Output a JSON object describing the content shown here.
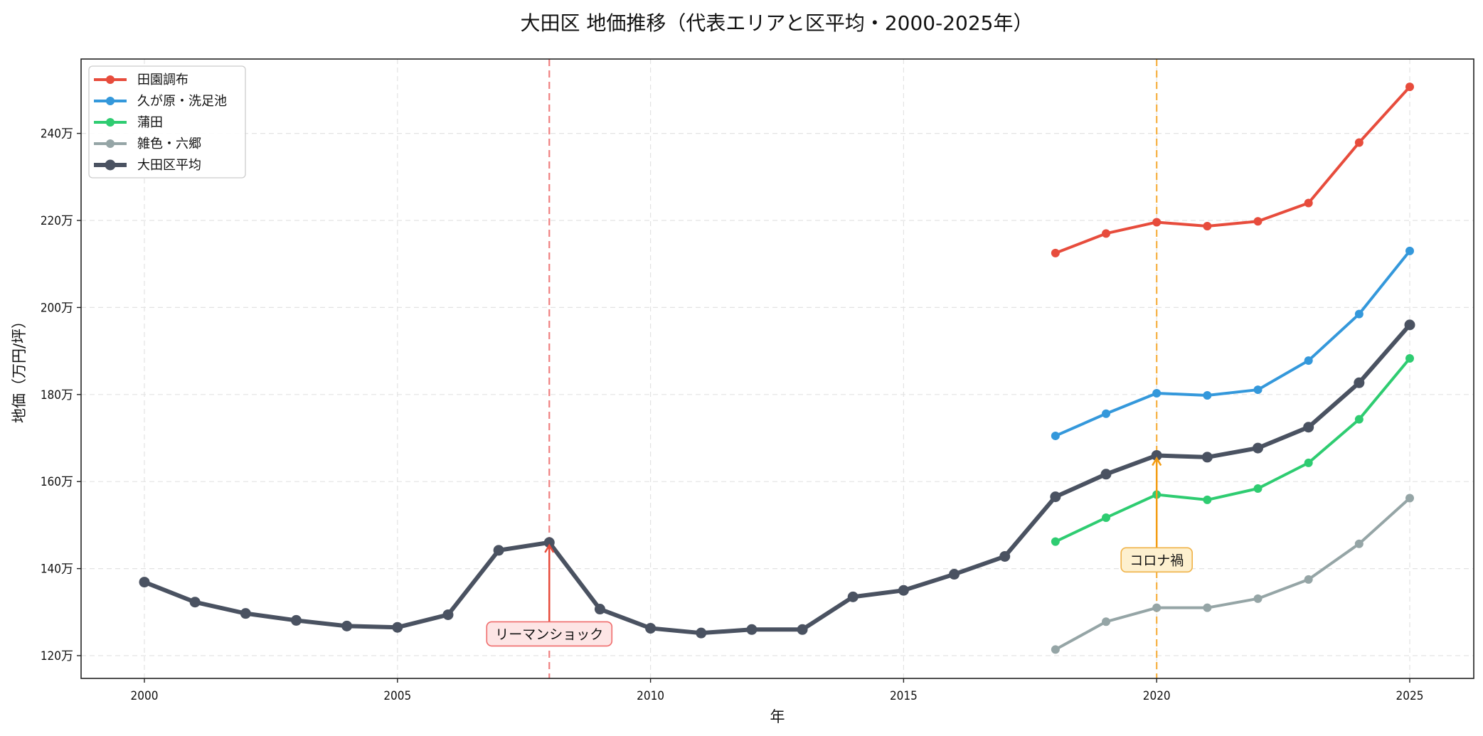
{
  "chart_data": {
    "type": "line",
    "title": "大田区 地価推移（代表エリアと区平均・2000-2025年）",
    "xlabel": "年",
    "ylabel": "地価（万円/坪）",
    "xlim": [
      1998.75,
      2026.25
    ],
    "ylim": [
      115,
      257
    ],
    "x_ticks": [
      2000,
      2005,
      2010,
      2015,
      2020,
      2025
    ],
    "y_ticks": [
      {
        "value": 120,
        "label": "120万"
      },
      {
        "value": 140,
        "label": "140万"
      },
      {
        "value": 160,
        "label": "160万"
      },
      {
        "value": 180,
        "label": "180万"
      },
      {
        "value": 200,
        "label": "200万"
      },
      {
        "value": 220,
        "label": "220万"
      },
      {
        "value": 240,
        "label": "240万"
      }
    ],
    "grid": true,
    "legend_position": "upper left",
    "series": [
      {
        "name": "田園調布",
        "color": "#e74c3c",
        "x": [
          2018,
          2019,
          2020,
          2021,
          2022,
          2023,
          2024,
          2025
        ],
        "values": [
          212.5,
          217.0,
          219.6,
          218.7,
          219.8,
          224.0,
          237.9,
          250.7
        ]
      },
      {
        "name": "久が原・洗足池",
        "color": "#3498db",
        "x": [
          2018,
          2019,
          2020,
          2021,
          2022,
          2023,
          2024,
          2025
        ],
        "values": [
          170.5,
          175.6,
          180.3,
          179.8,
          181.1,
          187.8,
          198.5,
          213.0
        ]
      },
      {
        "name": "蒲田",
        "color": "#2ecc71",
        "x": [
          2018,
          2019,
          2020,
          2021,
          2022,
          2023,
          2024,
          2025
        ],
        "values": [
          146.2,
          151.7,
          157.0,
          155.8,
          158.4,
          164.3,
          174.3,
          188.3
        ]
      },
      {
        "name": "雑色・六郷",
        "color": "#95a5a6",
        "x": [
          2018,
          2019,
          2020,
          2021,
          2022,
          2023,
          2024,
          2025
        ],
        "values": [
          121.4,
          127.8,
          131.0,
          131.0,
          133.1,
          137.5,
          145.7,
          156.2
        ]
      },
      {
        "name": "大田区平均",
        "color": "#4a5261",
        "x": [
          2000,
          2001,
          2002,
          2003,
          2004,
          2005,
          2006,
          2007,
          2008,
          2009,
          2010,
          2011,
          2012,
          2013,
          2014,
          2015,
          2016,
          2017,
          2018,
          2019,
          2020,
          2021,
          2022,
          2023,
          2024,
          2025
        ],
        "values": [
          136.9,
          132.3,
          129.7,
          128.1,
          126.8,
          126.5,
          129.4,
          144.2,
          146.0,
          130.7,
          126.3,
          125.2,
          126.0,
          126.0,
          133.5,
          135.0,
          138.7,
          142.8,
          156.5,
          161.7,
          166.0,
          165.6,
          167.7,
          172.5,
          182.7,
          196.0
        ]
      }
    ],
    "annotations": [
      {
        "text": "リーマンショック",
        "x": 2008,
        "color": "#e74c3c",
        "box_fill": "#fde5e5",
        "arrow_to": 146.0,
        "text_y": 125
      },
      {
        "text": "コロナ禍",
        "x": 2020,
        "color": "#f39c12",
        "box_fill": "#fdf0cf",
        "arrow_to": 166.0,
        "text_y": 142
      }
    ]
  }
}
